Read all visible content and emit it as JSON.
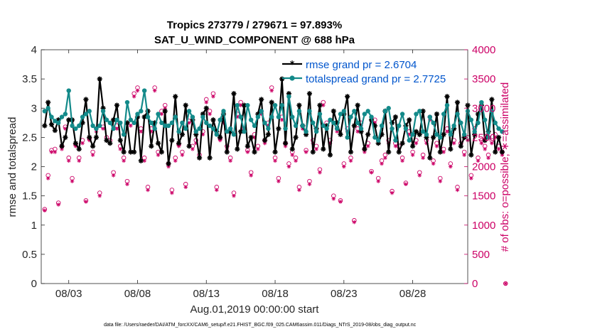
{
  "chart_data": {
    "type": "line",
    "title_line1": "Tropics 273779 / 279671 = 97.893%",
    "title_line2": "SAT_U_WIND_COMPONENT @ 688 hPa",
    "xlabel": "Aug.01,2019 00:00:00 start",
    "ylabel_left": "rmse and totalspread",
    "ylabel_right": "# of obs: o=possible; ∗=assimilated",
    "footnote": "data file: /Users/raeder/DAI/ATM_forcXX/CAM6_setup/f.e21.FHIST_BGC.f09_025.CAM6assim.011/Diags_NTrS_2019-08/obs_diag_output.nc",
    "x_tick_labels": [
      "08/03",
      "08/08",
      "08/13",
      "08/18",
      "08/23",
      "08/28"
    ],
    "x_tick_days": [
      3,
      8,
      13,
      18,
      23,
      28
    ],
    "xlim_days": [
      1.0,
      32.0
    ],
    "ylim_left": [
      0,
      4
    ],
    "ylim_right": [
      0,
      4000
    ],
    "y_ticks_left": [
      "0",
      "0.5",
      "1",
      "1.5",
      "2",
      "2.5",
      "3",
      "3.5",
      "4"
    ],
    "y_ticks_right": [
      "0",
      "500",
      "1000",
      "1500",
      "2000",
      "2500",
      "3000",
      "3500",
      "4000"
    ],
    "legend": [
      "rmse grand pr = 2.6704",
      "totalspread grand pr = 2.7725"
    ],
    "colors": {
      "rmse": "#000000",
      "spread": "#138a8a",
      "obs": "#cc0066"
    },
    "step_days": 0.25,
    "series": [
      {
        "name": "rmse",
        "values": [
          2.7,
          3.1,
          2.72,
          2.62,
          2.8,
          2.35,
          2.5,
          2.8,
          2.8,
          2.4,
          2.3,
          2.75,
          3.15,
          2.5,
          2.35,
          2.5,
          3.5,
          3.0,
          2.45,
          2.4,
          2.8,
          3.05,
          2.45,
          2.25,
          2.75,
          2.25,
          2.25,
          2.85,
          2.1,
          2.85,
          2.95,
          2.35,
          2.75,
          2.4,
          2.25,
          2.95,
          2.05,
          2.45,
          3.2,
          2.4,
          2.55,
          3.05,
          2.35,
          2.8,
          2.55,
          2.15,
          2.9,
          3.0,
          2.15,
          2.8,
          2.6,
          2.5,
          2.9,
          2.25,
          2.6,
          3.25,
          2.3,
          2.6,
          3.05,
          2.35,
          2.5,
          2.25,
          2.9,
          3.15,
          2.45,
          2.55,
          3.1,
          2.25,
          2.65,
          3.5,
          2.4,
          3.25,
          2.3,
          2.5,
          3.05,
          2.7,
          2.55,
          3.25,
          2.25,
          2.65,
          3.05,
          2.3,
          2.7,
          2.2,
          2.95,
          2.75,
          2.55,
          2.9,
          3.2,
          2.25,
          2.7,
          3.05,
          2.6,
          2.3,
          2.55,
          2.8,
          2.7,
          2.4,
          2.55,
          2.95,
          2.25,
          2.75,
          2.85,
          2.25,
          2.4,
          2.7,
          2.8,
          2.35,
          2.6,
          2.55,
          2.95,
          2.5,
          2.15,
          2.5,
          2.9,
          2.25,
          2.55,
          3.2,
          2.3,
          2.65,
          3.1,
          2.35,
          2.5,
          3.05,
          2.2,
          2.55,
          2.9,
          3.05,
          2.45,
          2.6,
          3.15,
          2.25,
          2.5,
          2.25
        ]
      },
      {
        "name": "totalspread",
        "values": [
          2.95,
          3.0,
          2.85,
          2.78,
          2.75,
          2.85,
          2.9,
          3.3,
          2.7,
          2.65,
          2.7,
          2.85,
          2.9,
          2.95,
          2.7,
          2.65,
          2.7,
          2.95,
          2.8,
          2.75,
          2.65,
          2.8,
          2.75,
          2.55,
          3.1,
          2.8,
          2.75,
          2.9,
          2.95,
          3.3,
          2.85,
          2.75,
          2.65,
          2.9,
          2.75,
          2.7,
          2.7,
          2.75,
          2.85,
          2.6,
          2.75,
          2.65,
          2.95,
          2.85,
          2.6,
          2.65,
          2.85,
          2.75,
          2.7,
          2.65,
          2.55,
          2.8,
          2.95,
          2.6,
          2.65,
          2.55,
          3.05,
          2.85,
          2.6,
          3.05,
          2.8,
          2.7,
          2.85,
          2.95,
          2.75,
          2.65,
          2.85,
          3.05,
          2.85,
          3.05,
          2.65,
          3.2,
          2.85,
          2.7,
          2.95,
          2.7,
          2.6,
          2.95,
          2.75,
          2.6,
          2.9,
          2.7,
          2.65,
          2.8,
          2.75,
          2.65,
          2.9,
          2.95,
          2.5,
          2.85,
          2.95,
          2.75,
          2.65,
          2.9,
          2.95,
          2.85,
          2.5,
          2.45,
          2.7,
          2.95,
          3.0,
          2.65,
          2.45,
          2.7,
          2.9,
          2.65,
          2.45,
          2.55,
          2.9,
          2.95,
          2.6,
          2.55,
          2.85,
          2.75,
          2.55,
          2.5,
          2.9,
          3.05,
          2.55,
          2.7,
          2.9,
          2.75,
          2.55,
          2.95,
          2.8,
          2.6,
          2.75,
          3.1,
          2.8,
          2.5,
          2.95,
          2.75,
          2.65,
          2.6
        ]
      }
    ],
    "obs_possible": [
      1270,
      1850,
      2280,
      2300,
      1380,
      2350,
      2680,
      2150,
      1800,
      2380,
      2150,
      2450,
      1420,
      2480,
      2250,
      2650,
      1550,
      2680,
      2500,
      2450,
      1900,
      2700,
      2350,
      2150,
      1750,
      2750,
      3250,
      3350,
      2650,
      2150,
      1650,
      2650,
      3350,
      2250,
      2950,
      3050,
      2050,
      1600,
      2150,
      2380,
      2250,
      1700,
      2780,
      2350,
      2450,
      2200,
      2600,
      3150,
      2950,
      3250,
      1650,
      2480,
      2800,
      2350,
      2150,
      1550,
      2900,
      3100,
      2650,
      2280,
      1900,
      2550,
      2350,
      2950,
      2450,
      2750,
      3350,
      2150,
      1800,
      2850,
      2400,
      2050,
      2250,
      2150,
      1650,
      2700,
      2280,
      1750,
      2450,
      2350,
      1950,
      3100,
      2750,
      2450,
      1500,
      2650,
      1420,
      2050,
      2650,
      2150,
      1080,
      2650,
      2750,
      2300,
      2400,
      1920,
      2800,
      1800,
      2100,
      2200,
      2450,
      1580,
      2400,
      2350,
      2150,
      1720,
      2600,
      2250,
      2450,
      1900,
      2200,
      2450,
      2850,
      2100,
      2400,
      1800,
      2300,
      2650,
      2050,
      2450,
      1650,
      2400,
      2250,
      2500,
      1850,
      2650,
      2150,
      2450,
      2350,
      2200,
      2450,
      2550,
      2350,
      2250,
      0
    ],
    "obs_assimilated": [
      1250,
      1800,
      2250,
      2250,
      1350,
      2300,
      2650,
      2100,
      1750,
      2350,
      2100,
      2400,
      1400,
      2450,
      2200,
      2600,
      1500,
      2650,
      2450,
      2400,
      1850,
      2650,
      2300,
      2100,
      1700,
      2700,
      3200,
      3300,
      2600,
      2100,
      1600,
      2600,
      3300,
      2200,
      2900,
      3000,
      2000,
      1550,
      2100,
      2350,
      2200,
      1650,
      2750,
      2300,
      2400,
      2150,
      2550,
      3100,
      2900,
      3200,
      1600,
      2450,
      2750,
      2300,
      2100,
      1500,
      2850,
      3050,
      2600,
      2250,
      1850,
      2500,
      2300,
      2900,
      2400,
      2700,
      3300,
      2100,
      1750,
      2800,
      2350,
      2000,
      2200,
      2100,
      1600,
      2650,
      2250,
      1700,
      2400,
      2300,
      1900,
      3050,
      2700,
      2400,
      1450,
      2600,
      1400,
      2000,
      2600,
      2100,
      1050,
      2600,
      2700,
      2250,
      2350,
      1900,
      2750,
      1750,
      2050,
      2150,
      2400,
      1550,
      2350,
      2300,
      2100,
      1700,
      2550,
      2200,
      2400,
      1850,
      2150,
      2400,
      2800,
      2050,
      2350,
      1750,
      2250,
      2600,
      2000,
      2400,
      1600,
      2350,
      2200,
      2450,
      1800,
      2600,
      2100,
      2400,
      2300,
      2150,
      2400,
      2500,
      2300,
      2200,
      0
    ]
  }
}
